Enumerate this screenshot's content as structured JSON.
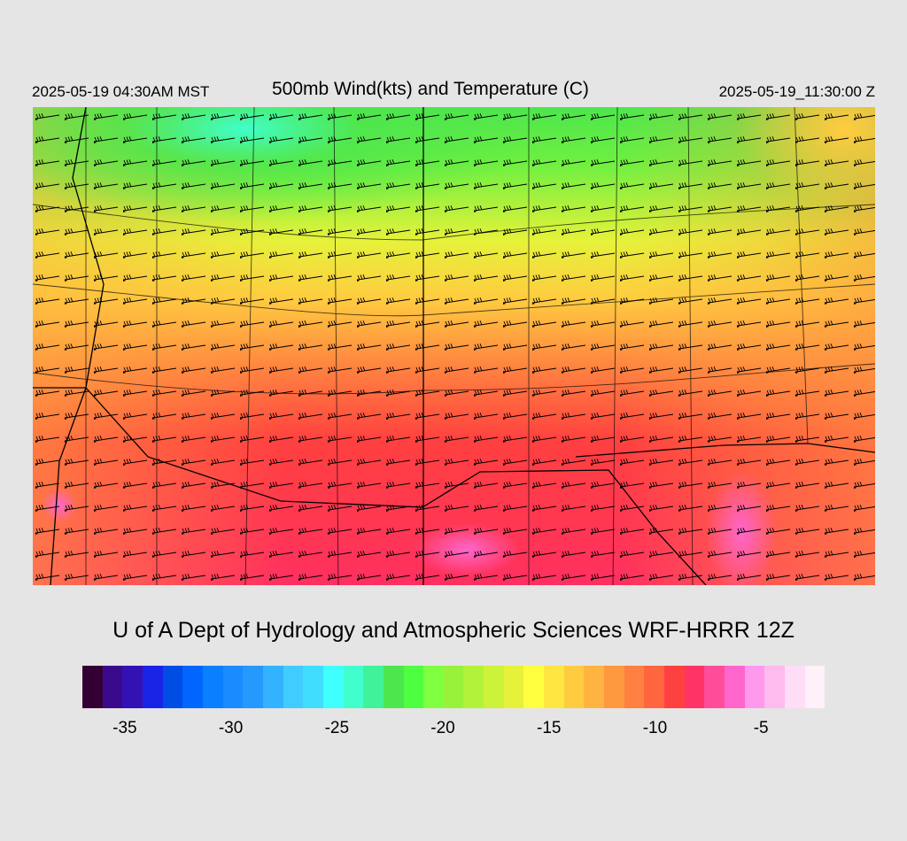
{
  "header": {
    "left": "2025-05-19 04:30AM MST",
    "center": "500mb Wind(kts) and Temperature (C)",
    "right": "2025-05-19_11:30:00 Z"
  },
  "subtitle": "U of A Dept of Hydrology and Atmospheric Sciences WRF-HRRR 12Z",
  "colorbar": {
    "colors": [
      "#330033",
      "#3b0a8c",
      "#3312b3",
      "#1a24e6",
      "#004de6",
      "#0066ff",
      "#0a80ff",
      "#1a8cff",
      "#2699ff",
      "#33b3ff",
      "#40ccff",
      "#40ddff",
      "#40ffff",
      "#40ffcc",
      "#40f29a",
      "#4de64d",
      "#4dff40",
      "#80ff40",
      "#99f23a",
      "#b3f23a",
      "#ccf23a",
      "#e6f23a",
      "#ffff40",
      "#ffe640",
      "#ffcc40",
      "#ffb340",
      "#ff9940",
      "#ff8040",
      "#ff6640",
      "#ff4040",
      "#ff3366",
      "#ff4d99",
      "#ff66cc",
      "#ff99ee",
      "#ffbbee",
      "#ffddf7",
      "#fff0fa"
    ],
    "ticks": [
      {
        "label": "-35",
        "value": -35
      },
      {
        "label": "-30",
        "value": -30
      },
      {
        "label": "-25",
        "value": -25
      },
      {
        "label": "-20",
        "value": -20
      },
      {
        "label": "-15",
        "value": -15
      },
      {
        "label": "-10",
        "value": -10
      },
      {
        "label": "-5",
        "value": -5
      }
    ],
    "range": [
      -37,
      -2
    ]
  }
}
